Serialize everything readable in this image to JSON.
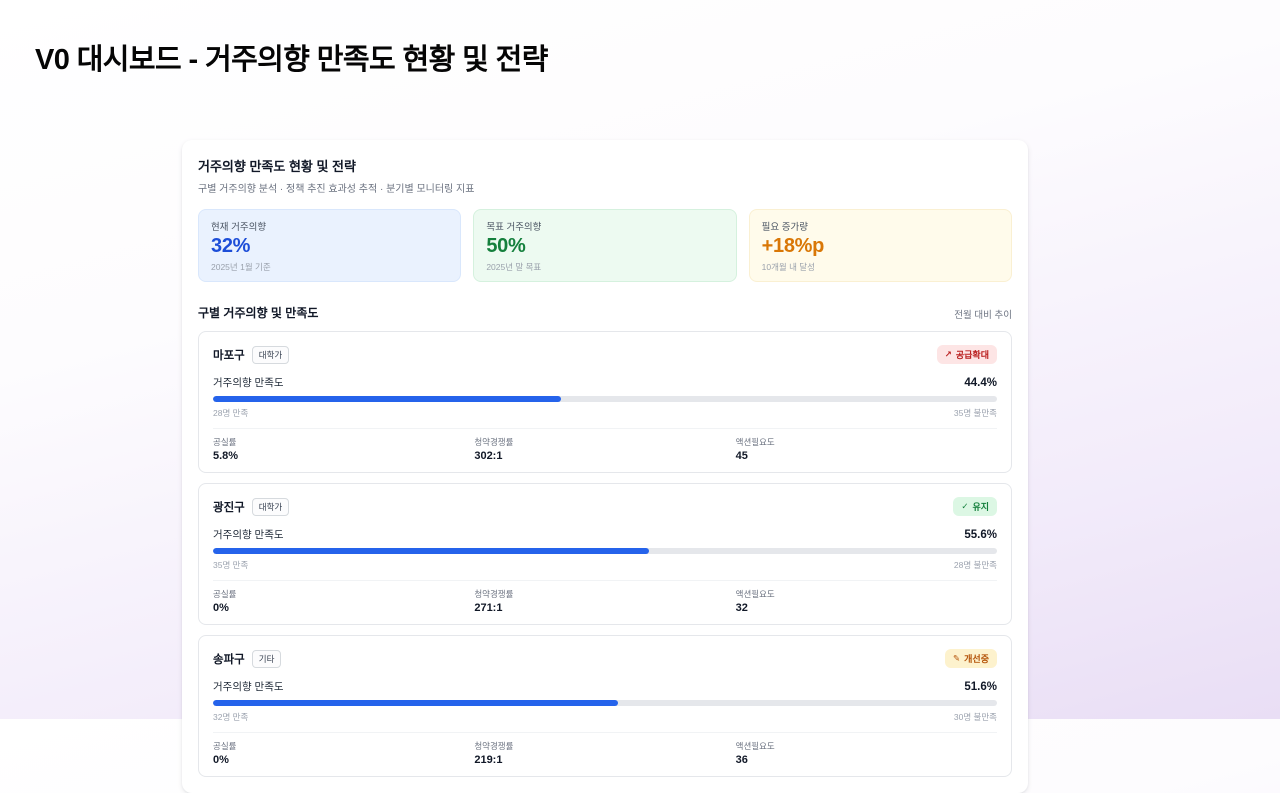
{
  "page": {
    "title": "V0 대시보드 - 거주의향 만족도 현황 및 전략"
  },
  "panel": {
    "title": "거주의향 만족도 현황 및 전략",
    "subtitle": "구별 거주의향 분석 · 정책 추진 효과성 추적 · 분기별 모니터링 지표"
  },
  "summary_cards": [
    {
      "label": "현재 거주의향",
      "value": "32%",
      "note": "2025년 1월 기준"
    },
    {
      "label": "목표 거주의향",
      "value": "50%",
      "note": "2025년 말 목표"
    },
    {
      "label": "필요 증가량",
      "value": "+18%p",
      "note": "10개월 내 달성"
    }
  ],
  "section": {
    "title": "구별 거주의향 및 만족도",
    "meta": "전월 대비 추이"
  },
  "labels": {
    "metric": "거주의향 만족도"
  },
  "districts": [
    {
      "name": "마포구",
      "tag": "대학가",
      "status_icon": "↗",
      "status": "공급확대",
      "percent": "44.4%",
      "percent_value": 44.4,
      "satisfied": "28명 만족",
      "unsatisfied": "35명 불만족",
      "stats": [
        {
          "label": "공실률",
          "value": "5.8%"
        },
        {
          "label": "청약경쟁률",
          "value": "302:1"
        },
        {
          "label": "액션필요도",
          "value": "45"
        }
      ]
    },
    {
      "name": "광진구",
      "tag": "대학가",
      "status_icon": "✓",
      "status": "유지",
      "percent": "55.6%",
      "percent_value": 55.6,
      "satisfied": "35명 만족",
      "unsatisfied": "28명 불만족",
      "stats": [
        {
          "label": "공실률",
          "value": "0%"
        },
        {
          "label": "청약경쟁률",
          "value": "271:1"
        },
        {
          "label": "액션필요도",
          "value": "32"
        }
      ]
    },
    {
      "name": "송파구",
      "tag": "기타",
      "status_icon": "✎",
      "status": "개선중",
      "percent": "51.6%",
      "percent_value": 51.6,
      "satisfied": "32명 만족",
      "unsatisfied": "30명 불만족",
      "stats": [
        {
          "label": "공실률",
          "value": "0%"
        },
        {
          "label": "청약경쟁률",
          "value": "219:1"
        },
        {
          "label": "액션필요도",
          "value": "36"
        }
      ]
    }
  ],
  "colors": {
    "accent_blue": "#2563eb",
    "value_blue": "#1d4ed8",
    "value_green": "#15803d",
    "value_amber": "#d97706",
    "status_red_bg": "#fde5e5",
    "status_green_bg": "#dcf7e4",
    "status_amber_bg": "#fdf2cd"
  }
}
